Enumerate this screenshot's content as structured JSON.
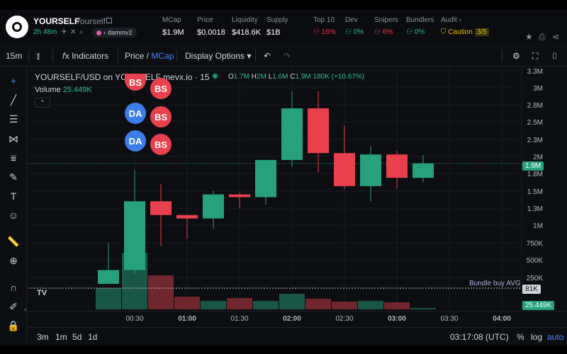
{
  "header": {
    "title": "YOURSELF",
    "subtitle": "Yourself",
    "age": "2h 48m",
    "chip_label": "dammv2",
    "stats": [
      {
        "label": "MCap",
        "value": "$1.9M"
      },
      {
        "label": "Price",
        "value": "$0.0018"
      },
      {
        "label": "Liquidity",
        "value": "$418.6K"
      },
      {
        "label": "Supply",
        "value": "$1B"
      }
    ],
    "risk": [
      {
        "label": "Top 10",
        "value": "16%"
      },
      {
        "label": "Dev",
        "value": "0%"
      },
      {
        "label": "Snipers",
        "value": "6%"
      },
      {
        "label": "Bundlers",
        "value": "0%"
      }
    ],
    "audit_label": "Audit",
    "caution_label": "Caution",
    "caution_score": "3/5"
  },
  "toolbar": {
    "interval": "15m",
    "indicators": "Indicators",
    "price_label": "Price",
    "mcap_label": "MCap",
    "display_options": "Display Options"
  },
  "chart": {
    "symbol": "YOURSELF/USD on YOURSELF mevx.io · 15",
    "ohlc": {
      "o": "1.7M",
      "h": "2M",
      "l": "1.6M",
      "c": "1.9M",
      "change": "180K (+10.67%)"
    },
    "volume_label": "Volume",
    "volume_value": "25.449K",
    "current_price_tag": "1.9M",
    "bundle_label": "Bundle buy AVG",
    "bundle_tag": "81K",
    "volume_tag": "25.449K"
  },
  "bubbles": [
    {
      "text": "BS",
      "color": "red"
    },
    {
      "text": "BS",
      "color": "red"
    },
    {
      "text": "DA",
      "color": "blue"
    },
    {
      "text": "BS",
      "color": "red"
    },
    {
      "text": "DA",
      "color": "blue"
    },
    {
      "text": "BS",
      "color": "red"
    }
  ],
  "chart_data": {
    "type": "candlestick",
    "x_ticks": [
      "00:30",
      "01:00",
      "01:30",
      "02:00",
      "02:30",
      "03:00",
      "03:30",
      "04:00"
    ],
    "y_ticks": [
      "250K",
      "500K",
      "750K",
      "1M",
      "1.3M",
      "1.5M",
      "1.8M",
      "2M",
      "2.3M",
      "2.5M",
      "2.8M",
      "3M",
      "3.3M"
    ],
    "candles": [
      {
        "o": 150,
        "h": 750,
        "l": 150,
        "c": 350
      },
      {
        "o": 350,
        "h": 1800,
        "l": 300,
        "c": 1350
      },
      {
        "o": 1350,
        "h": 1600,
        "l": 700,
        "c": 1150
      },
      {
        "o": 1150,
        "h": 1150,
        "l": 800,
        "c": 1100
      },
      {
        "o": 1100,
        "h": 1500,
        "l": 950,
        "c": 1450
      },
      {
        "o": 1450,
        "h": 1480,
        "l": 1250,
        "c": 1410
      },
      {
        "o": 1410,
        "h": 1950,
        "l": 1300,
        "c": 1950
      },
      {
        "o": 1950,
        "h": 2950,
        "l": 1850,
        "c": 2700
      },
      {
        "o": 2700,
        "h": 2950,
        "l": 1770,
        "c": 2050
      },
      {
        "o": 2050,
        "h": 2450,
        "l": 1530,
        "c": 1570
      },
      {
        "o": 1570,
        "h": 2150,
        "l": 1350,
        "c": 2030
      },
      {
        "o": 2030,
        "h": 2080,
        "l": 1530,
        "c": 1690
      },
      {
        "o": 1690,
        "h": 2020,
        "l": 1630,
        "c": 1900
      }
    ],
    "volumes": [
      30,
      80,
      48,
      18,
      12,
      16,
      12,
      22,
      15,
      11,
      12,
      10,
      2
    ]
  },
  "bottombar": {
    "ranges": [
      "3m",
      "1m",
      "5d",
      "1d"
    ],
    "clock": "03:17:08 (UTC)",
    "percent": "%",
    "log": "log",
    "auto": "auto"
  },
  "colors": {
    "up": "#26a17b",
    "down": "#e8404c",
    "accent": "#2ebd85"
  }
}
